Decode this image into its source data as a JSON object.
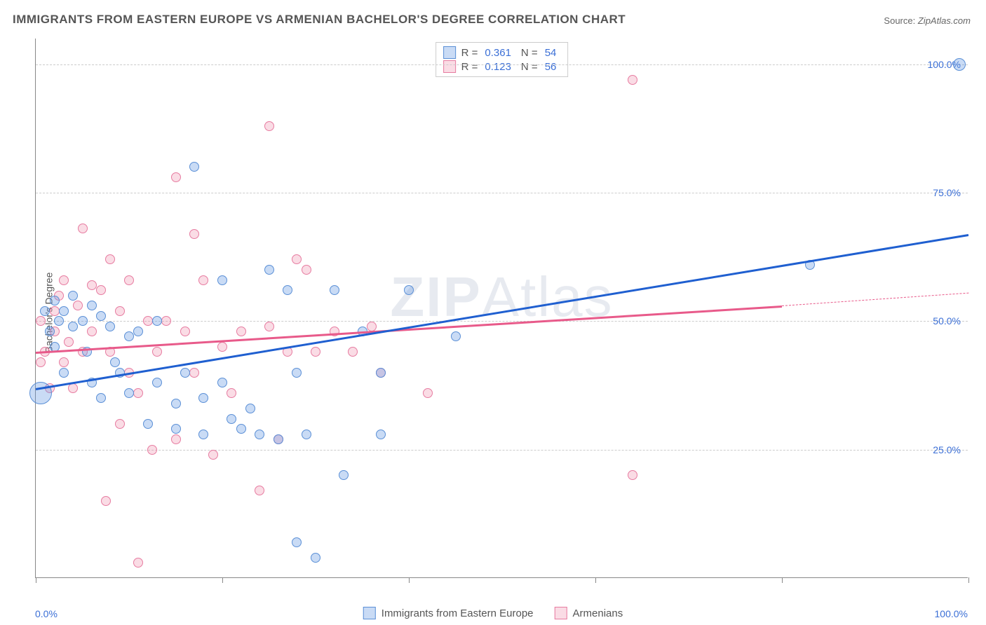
{
  "title": "IMMIGRANTS FROM EASTERN EUROPE VS ARMENIAN BACHELOR'S DEGREE CORRELATION CHART",
  "source_label": "Source:",
  "source_value": "ZipAtlas.com",
  "ylabel": "Bachelor's Degree",
  "watermark": {
    "bold": "ZIP",
    "rest": "Atlas"
  },
  "chart": {
    "type": "scatter",
    "xlim": [
      0,
      100
    ],
    "ylim": [
      0,
      105
    ],
    "yticks": [
      25,
      50,
      75,
      100
    ],
    "ytick_labels": [
      "25.0%",
      "50.0%",
      "75.0%",
      "100.0%"
    ],
    "xticks": [
      0,
      20,
      40,
      60,
      80,
      100
    ],
    "xtick_labels_shown": {
      "0": "0.0%",
      "100": "100.0%"
    },
    "background_color": "#ffffff",
    "grid_color": "#cccccc",
    "axis_color": "#888888",
    "marker_radius": 7,
    "marker_stroke_width": 1.5,
    "series": [
      {
        "name": "Immigrants from Eastern Europe",
        "short": "blue",
        "fill": "rgba(99,151,225,0.35)",
        "stroke": "#5a8fd6",
        "trend_color": "#1f5fd0",
        "R": "0.361",
        "N": "54",
        "trend": {
          "x1": 0,
          "y1": 37,
          "x2": 100,
          "y2": 67
        },
        "points": [
          {
            "x": 0.5,
            "y": 36,
            "r": 16
          },
          {
            "x": 1,
            "y": 52
          },
          {
            "x": 1.5,
            "y": 48
          },
          {
            "x": 2,
            "y": 54
          },
          {
            "x": 2,
            "y": 45
          },
          {
            "x": 2.5,
            "y": 50
          },
          {
            "x": 3,
            "y": 52
          },
          {
            "x": 3,
            "y": 40
          },
          {
            "x": 4,
            "y": 55
          },
          {
            "x": 4,
            "y": 49
          },
          {
            "x": 5,
            "y": 50
          },
          {
            "x": 5.5,
            "y": 44
          },
          {
            "x": 6,
            "y": 53
          },
          {
            "x": 6,
            "y": 38
          },
          {
            "x": 7,
            "y": 51
          },
          {
            "x": 7,
            "y": 35
          },
          {
            "x": 8,
            "y": 49
          },
          {
            "x": 8.5,
            "y": 42
          },
          {
            "x": 9,
            "y": 40
          },
          {
            "x": 10,
            "y": 47
          },
          {
            "x": 10,
            "y": 36
          },
          {
            "x": 11,
            "y": 48
          },
          {
            "x": 12,
            "y": 30
          },
          {
            "x": 13,
            "y": 38
          },
          {
            "x": 13,
            "y": 50
          },
          {
            "x": 15,
            "y": 34
          },
          {
            "x": 15,
            "y": 29
          },
          {
            "x": 16,
            "y": 40
          },
          {
            "x": 17,
            "y": 80
          },
          {
            "x": 18,
            "y": 35
          },
          {
            "x": 18,
            "y": 28
          },
          {
            "x": 20,
            "y": 58
          },
          {
            "x": 20,
            "y": 38
          },
          {
            "x": 21,
            "y": 31
          },
          {
            "x": 22,
            "y": 29
          },
          {
            "x": 23,
            "y": 33
          },
          {
            "x": 24,
            "y": 28
          },
          {
            "x": 25,
            "y": 60
          },
          {
            "x": 26,
            "y": 27
          },
          {
            "x": 27,
            "y": 56
          },
          {
            "x": 28,
            "y": 40
          },
          {
            "x": 28,
            "y": 7
          },
          {
            "x": 29,
            "y": 28
          },
          {
            "x": 30,
            "y": 4
          },
          {
            "x": 32,
            "y": 56
          },
          {
            "x": 33,
            "y": 20
          },
          {
            "x": 35,
            "y": 48
          },
          {
            "x": 37,
            "y": 40
          },
          {
            "x": 37,
            "y": 28
          },
          {
            "x": 40,
            "y": 56
          },
          {
            "x": 45,
            "y": 47
          },
          {
            "x": 83,
            "y": 61
          },
          {
            "x": 99,
            "y": 100,
            "r": 9
          }
        ]
      },
      {
        "name": "Armenians",
        "short": "pink",
        "fill": "rgba(240,140,170,0.30)",
        "stroke": "#e77ba0",
        "trend_color": "#e85a8a",
        "R": "0.123",
        "N": "56",
        "trend_solid": {
          "x1": 0,
          "y1": 44,
          "x2": 80,
          "y2": 53
        },
        "trend_dashed": {
          "x1": 80,
          "y1": 53,
          "x2": 100,
          "y2": 55.5
        },
        "points": [
          {
            "x": 0.5,
            "y": 42
          },
          {
            "x": 0.5,
            "y": 50
          },
          {
            "x": 1,
            "y": 44
          },
          {
            "x": 1.5,
            "y": 37
          },
          {
            "x": 2,
            "y": 48
          },
          {
            "x": 2,
            "y": 52
          },
          {
            "x": 2.5,
            "y": 55
          },
          {
            "x": 3,
            "y": 42
          },
          {
            "x": 3,
            "y": 58
          },
          {
            "x": 3.5,
            "y": 46
          },
          {
            "x": 4,
            "y": 37
          },
          {
            "x": 4.5,
            "y": 53
          },
          {
            "x": 5,
            "y": 68
          },
          {
            "x": 5,
            "y": 44
          },
          {
            "x": 6,
            "y": 48
          },
          {
            "x": 6,
            "y": 57
          },
          {
            "x": 7,
            "y": 56
          },
          {
            "x": 7.5,
            "y": 15
          },
          {
            "x": 8,
            "y": 62
          },
          {
            "x": 8,
            "y": 44
          },
          {
            "x": 9,
            "y": 52
          },
          {
            "x": 9,
            "y": 30
          },
          {
            "x": 10,
            "y": 58
          },
          {
            "x": 10,
            "y": 40
          },
          {
            "x": 11,
            "y": 36
          },
          {
            "x": 11,
            "y": 3
          },
          {
            "x": 12,
            "y": 50
          },
          {
            "x": 12.5,
            "y": 25
          },
          {
            "x": 13,
            "y": 44
          },
          {
            "x": 14,
            "y": 50
          },
          {
            "x": 15,
            "y": 78
          },
          {
            "x": 15,
            "y": 27
          },
          {
            "x": 16,
            "y": 48
          },
          {
            "x": 17,
            "y": 67
          },
          {
            "x": 17,
            "y": 40
          },
          {
            "x": 18,
            "y": 58
          },
          {
            "x": 19,
            "y": 24
          },
          {
            "x": 20,
            "y": 45
          },
          {
            "x": 21,
            "y": 36
          },
          {
            "x": 22,
            "y": 48
          },
          {
            "x": 24,
            "y": 17
          },
          {
            "x": 25,
            "y": 88
          },
          {
            "x": 25,
            "y": 49
          },
          {
            "x": 26,
            "y": 27
          },
          {
            "x": 27,
            "y": 44
          },
          {
            "x": 28,
            "y": 62
          },
          {
            "x": 29,
            "y": 60
          },
          {
            "x": 30,
            "y": 44
          },
          {
            "x": 32,
            "y": 48
          },
          {
            "x": 34,
            "y": 44
          },
          {
            "x": 36,
            "y": 49
          },
          {
            "x": 37,
            "y": 40
          },
          {
            "x": 42,
            "y": 36
          },
          {
            "x": 64,
            "y": 97
          },
          {
            "x": 64,
            "y": 20
          }
        ]
      }
    ]
  },
  "colors": {
    "blue_primary": "#3b6fd6",
    "text_gray": "#555555"
  }
}
